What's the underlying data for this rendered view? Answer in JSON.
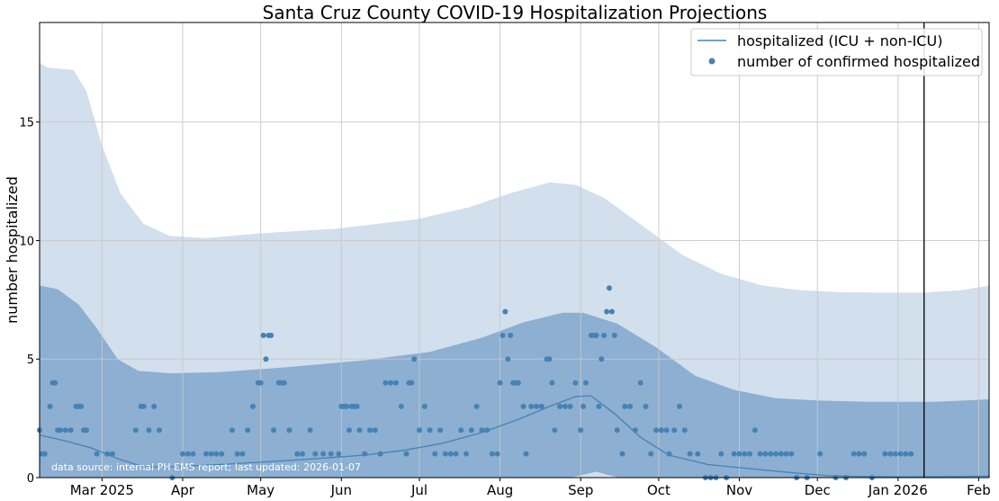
{
  "chart_data": {
    "type": "line",
    "title": "Santa Cruz County COVID-19 Hospitalization Projections",
    "ylabel": "number hospitalized",
    "xlabel": "",
    "x_start": "2025-02-05",
    "x_end": "2026-02-05",
    "ylim": [
      0,
      19.2
    ],
    "yticks": [
      0,
      5,
      10,
      15
    ],
    "xticks": [
      {
        "date": "2025-03-01",
        "label": "Mar 2025"
      },
      {
        "date": "2025-04-01",
        "label": "Apr"
      },
      {
        "date": "2025-05-01",
        "label": "May"
      },
      {
        "date": "2025-06-01",
        "label": "Jun"
      },
      {
        "date": "2025-07-01",
        "label": "Jul"
      },
      {
        "date": "2025-08-01",
        "label": "Aug"
      },
      {
        "date": "2025-09-01",
        "label": "Sep"
      },
      {
        "date": "2025-10-01",
        "label": "Oct"
      },
      {
        "date": "2025-11-01",
        "label": "Nov"
      },
      {
        "date": "2025-12-01",
        "label": "Dec"
      },
      {
        "date": "2026-01-01",
        "label": "Jan 2026"
      },
      {
        "date": "2026-02-01",
        "label": "Feb"
      }
    ],
    "grid": true,
    "legend_position": "top-right",
    "legend": [
      {
        "label": "hospitalized (ICU + non-ICU)",
        "kind": "line"
      },
      {
        "label": "number of confirmed hospitalized",
        "kind": "marker"
      }
    ],
    "vline_date": "2026-01-11",
    "source_note": "data source: internal PH EMS report; last updated: 2026-01-07",
    "colors": {
      "line": "#4682b4",
      "points": "#4682b4",
      "outer_band": "#d2dfec",
      "inner_band": "#8cafd2",
      "grid": "#c8c8c8",
      "vline": "#000000"
    },
    "series": [
      {
        "name": "hospitalized (ICU + non-ICU)",
        "points": [
          [
            "2025-02-05",
            1.8
          ],
          [
            "2025-02-15",
            1.55
          ],
          [
            "2025-02-25",
            1.25
          ],
          [
            "2025-03-07",
            0.8
          ],
          [
            "2025-03-17",
            0.45
          ],
          [
            "2025-03-27",
            0.45
          ],
          [
            "2025-04-15",
            0.55
          ],
          [
            "2025-05-01",
            0.65
          ],
          [
            "2025-05-20",
            0.78
          ],
          [
            "2025-06-10",
            0.95
          ],
          [
            "2025-06-25",
            1.15
          ],
          [
            "2025-07-10",
            1.45
          ],
          [
            "2025-07-25",
            1.9
          ],
          [
            "2025-08-08",
            2.45
          ],
          [
            "2025-08-20",
            3.0
          ],
          [
            "2025-08-30",
            3.42
          ],
          [
            "2025-09-05",
            3.45
          ],
          [
            "2025-09-14",
            2.7
          ],
          [
            "2025-09-24",
            1.7
          ],
          [
            "2025-10-05",
            0.95
          ],
          [
            "2025-10-20",
            0.55
          ],
          [
            "2025-11-05",
            0.38
          ],
          [
            "2025-11-20",
            0.22
          ],
          [
            "2025-12-05",
            0.08
          ],
          [
            "2025-12-20",
            0.04
          ],
          [
            "2026-01-05",
            0.03
          ],
          [
            "2026-01-20",
            0.04
          ],
          [
            "2026-02-05",
            0.06
          ]
        ]
      },
      {
        "name": "upper bound (outer)",
        "points": [
          [
            "2025-02-05",
            17.5
          ],
          [
            "2025-02-08",
            17.3
          ],
          [
            "2025-02-18",
            17.2
          ],
          [
            "2025-02-23",
            16.3
          ],
          [
            "2025-03-01",
            14.0
          ],
          [
            "2025-03-08",
            12.0
          ],
          [
            "2025-03-17",
            10.7
          ],
          [
            "2025-03-27",
            10.2
          ],
          [
            "2025-04-10",
            10.1
          ],
          [
            "2025-04-30",
            10.3
          ],
          [
            "2025-05-30",
            10.5
          ],
          [
            "2025-06-30",
            10.9
          ],
          [
            "2025-07-20",
            11.4
          ],
          [
            "2025-08-05",
            12.0
          ],
          [
            "2025-08-20",
            12.45
          ],
          [
            "2025-08-30",
            12.35
          ],
          [
            "2025-09-10",
            11.8
          ],
          [
            "2025-09-25",
            10.6
          ],
          [
            "2025-10-10",
            9.4
          ],
          [
            "2025-10-25",
            8.6
          ],
          [
            "2025-11-10",
            8.1
          ],
          [
            "2025-11-25",
            7.9
          ],
          [
            "2025-12-10",
            7.82
          ],
          [
            "2025-12-25",
            7.8
          ],
          [
            "2026-01-10",
            7.8
          ],
          [
            "2026-01-25",
            7.9
          ],
          [
            "2026-02-05",
            8.1
          ]
        ]
      },
      {
        "name": "upper bound (inner)",
        "points": [
          [
            "2025-02-05",
            8.1
          ],
          [
            "2025-02-12",
            7.95
          ],
          [
            "2025-02-20",
            7.3
          ],
          [
            "2025-02-27",
            6.3
          ],
          [
            "2025-03-07",
            5.0
          ],
          [
            "2025-03-15",
            4.5
          ],
          [
            "2025-03-27",
            4.4
          ],
          [
            "2025-04-15",
            4.45
          ],
          [
            "2025-05-10",
            4.65
          ],
          [
            "2025-06-10",
            4.95
          ],
          [
            "2025-07-05",
            5.3
          ],
          [
            "2025-07-25",
            5.9
          ],
          [
            "2025-08-10",
            6.55
          ],
          [
            "2025-08-25",
            6.95
          ],
          [
            "2025-09-02",
            6.95
          ],
          [
            "2025-09-15",
            6.5
          ],
          [
            "2025-09-30",
            5.5
          ],
          [
            "2025-10-15",
            4.3
          ],
          [
            "2025-10-30",
            3.7
          ],
          [
            "2025-11-15",
            3.35
          ],
          [
            "2025-12-01",
            3.25
          ],
          [
            "2025-12-20",
            3.2
          ],
          [
            "2026-01-15",
            3.2
          ],
          [
            "2026-02-05",
            3.3
          ]
        ]
      },
      {
        "name": "lower bound (inner)",
        "points": [
          [
            "2025-02-05",
            0
          ],
          [
            "2025-08-28",
            0
          ],
          [
            "2025-09-01",
            0.1
          ],
          [
            "2025-09-07",
            0.25
          ],
          [
            "2025-09-12",
            0.1
          ],
          [
            "2025-09-16",
            0
          ],
          [
            "2026-02-05",
            0
          ]
        ]
      },
      {
        "name": "number of confirmed hospitalized",
        "kind": "scatter",
        "points": [
          [
            "2025-02-05",
            2
          ],
          [
            "2025-02-06",
            1
          ],
          [
            "2025-02-07",
            1
          ],
          [
            "2025-02-09",
            3
          ],
          [
            "2025-02-10",
            4
          ],
          [
            "2025-02-11",
            4
          ],
          [
            "2025-02-12",
            2
          ],
          [
            "2025-02-13",
            2
          ],
          [
            "2025-02-15",
            2
          ],
          [
            "2025-02-17",
            2
          ],
          [
            "2025-02-19",
            3
          ],
          [
            "2025-02-20",
            3
          ],
          [
            "2025-02-21",
            3
          ],
          [
            "2025-02-22",
            2
          ],
          [
            "2025-02-23",
            2
          ],
          [
            "2025-02-27",
            1
          ],
          [
            "2025-03-03",
            1
          ],
          [
            "2025-03-05",
            1
          ],
          [
            "2025-03-14",
            2
          ],
          [
            "2025-03-16",
            3
          ],
          [
            "2025-03-17",
            3
          ],
          [
            "2025-03-19",
            2
          ],
          [
            "2025-03-21",
            3
          ],
          [
            "2025-03-23",
            2
          ],
          [
            "2025-03-28",
            0
          ],
          [
            "2025-04-01",
            1
          ],
          [
            "2025-04-03",
            1
          ],
          [
            "2025-04-05",
            1
          ],
          [
            "2025-04-10",
            1
          ],
          [
            "2025-04-12",
            1
          ],
          [
            "2025-04-14",
            1
          ],
          [
            "2025-04-16",
            1
          ],
          [
            "2025-04-20",
            2
          ],
          [
            "2025-04-22",
            1
          ],
          [
            "2025-04-24",
            1
          ],
          [
            "2025-04-26",
            2
          ],
          [
            "2025-04-28",
            3
          ],
          [
            "2025-04-30",
            4
          ],
          [
            "2025-05-01",
            4
          ],
          [
            "2025-05-02",
            6
          ],
          [
            "2025-05-03",
            5
          ],
          [
            "2025-05-04",
            6
          ],
          [
            "2025-05-05",
            6
          ],
          [
            "2025-05-06",
            2
          ],
          [
            "2025-05-08",
            4
          ],
          [
            "2025-05-09",
            4
          ],
          [
            "2025-05-10",
            4
          ],
          [
            "2025-05-12",
            2
          ],
          [
            "2025-05-15",
            1
          ],
          [
            "2025-05-17",
            1
          ],
          [
            "2025-05-20",
            2
          ],
          [
            "2025-05-22",
            1
          ],
          [
            "2025-05-25",
            1
          ],
          [
            "2025-05-28",
            1
          ],
          [
            "2025-05-31",
            1
          ],
          [
            "2025-06-01",
            3
          ],
          [
            "2025-06-02",
            3
          ],
          [
            "2025-06-03",
            3
          ],
          [
            "2025-06-04",
            2
          ],
          [
            "2025-06-05",
            3
          ],
          [
            "2025-06-06",
            3
          ],
          [
            "2025-06-07",
            3
          ],
          [
            "2025-06-08",
            2
          ],
          [
            "2025-06-10",
            1
          ],
          [
            "2025-06-12",
            2
          ],
          [
            "2025-06-14",
            2
          ],
          [
            "2025-06-16",
            1
          ],
          [
            "2025-06-18",
            4
          ],
          [
            "2025-06-20",
            4
          ],
          [
            "2025-06-22",
            4
          ],
          [
            "2025-06-24",
            3
          ],
          [
            "2025-06-26",
            1
          ],
          [
            "2025-06-27",
            4
          ],
          [
            "2025-06-28",
            4
          ],
          [
            "2025-06-29",
            5
          ],
          [
            "2025-07-01",
            2
          ],
          [
            "2025-07-03",
            3
          ],
          [
            "2025-07-05",
            2
          ],
          [
            "2025-07-07",
            1
          ],
          [
            "2025-07-09",
            2
          ],
          [
            "2025-07-11",
            1
          ],
          [
            "2025-07-13",
            1
          ],
          [
            "2025-07-15",
            1
          ],
          [
            "2025-07-17",
            2
          ],
          [
            "2025-07-19",
            1
          ],
          [
            "2025-07-21",
            2
          ],
          [
            "2025-07-23",
            3
          ],
          [
            "2025-07-25",
            2
          ],
          [
            "2025-07-27",
            2
          ],
          [
            "2025-07-29",
            1
          ],
          [
            "2025-07-31",
            1
          ],
          [
            "2025-08-01",
            4
          ],
          [
            "2025-08-02",
            6
          ],
          [
            "2025-08-03",
            7
          ],
          [
            "2025-08-04",
            5
          ],
          [
            "2025-08-05",
            6
          ],
          [
            "2025-08-06",
            4
          ],
          [
            "2025-08-07",
            4
          ],
          [
            "2025-08-08",
            4
          ],
          [
            "2025-08-10",
            3
          ],
          [
            "2025-08-11",
            1
          ],
          [
            "2025-08-13",
            3
          ],
          [
            "2025-08-15",
            3
          ],
          [
            "2025-08-17",
            3
          ],
          [
            "2025-08-19",
            5
          ],
          [
            "2025-08-20",
            5
          ],
          [
            "2025-08-21",
            4
          ],
          [
            "2025-08-22",
            2
          ],
          [
            "2025-08-24",
            3
          ],
          [
            "2025-08-26",
            3
          ],
          [
            "2025-08-28",
            3
          ],
          [
            "2025-08-30",
            4
          ],
          [
            "2025-09-01",
            2
          ],
          [
            "2025-09-02",
            3
          ],
          [
            "2025-09-03",
            4
          ],
          [
            "2025-09-05",
            6
          ],
          [
            "2025-09-06",
            6
          ],
          [
            "2025-09-07",
            6
          ],
          [
            "2025-09-08",
            3
          ],
          [
            "2025-09-09",
            5
          ],
          [
            "2025-09-10",
            6
          ],
          [
            "2025-09-11",
            7
          ],
          [
            "2025-09-12",
            8
          ],
          [
            "2025-09-13",
            7
          ],
          [
            "2025-09-14",
            6
          ],
          [
            "2025-09-15",
            2
          ],
          [
            "2025-09-17",
            1
          ],
          [
            "2025-09-18",
            3
          ],
          [
            "2025-09-20",
            3
          ],
          [
            "2025-09-22",
            2
          ],
          [
            "2025-09-24",
            4
          ],
          [
            "2025-09-26",
            3
          ],
          [
            "2025-09-28",
            1
          ],
          [
            "2025-09-30",
            2
          ],
          [
            "2025-10-02",
            2
          ],
          [
            "2025-10-04",
            2
          ],
          [
            "2025-10-05",
            1
          ],
          [
            "2025-10-07",
            2
          ],
          [
            "2025-10-09",
            3
          ],
          [
            "2025-10-11",
            2
          ],
          [
            "2025-10-13",
            1
          ],
          [
            "2025-10-16",
            1
          ],
          [
            "2025-10-19",
            0
          ],
          [
            "2025-10-21",
            0
          ],
          [
            "2025-10-23",
            0
          ],
          [
            "2025-10-25",
            1
          ],
          [
            "2025-10-27",
            0
          ],
          [
            "2025-10-30",
            1
          ],
          [
            "2025-11-01",
            1
          ],
          [
            "2025-11-03",
            1
          ],
          [
            "2025-11-05",
            1
          ],
          [
            "2025-11-07",
            2
          ],
          [
            "2025-11-09",
            1
          ],
          [
            "2025-11-11",
            1
          ],
          [
            "2025-11-13",
            1
          ],
          [
            "2025-11-15",
            1
          ],
          [
            "2025-11-17",
            1
          ],
          [
            "2025-11-19",
            1
          ],
          [
            "2025-11-21",
            1
          ],
          [
            "2025-11-23",
            0
          ],
          [
            "2025-11-27",
            0
          ],
          [
            "2025-12-02",
            1
          ],
          [
            "2025-12-08",
            0
          ],
          [
            "2025-12-12",
            0
          ],
          [
            "2025-12-15",
            1
          ],
          [
            "2025-12-17",
            1
          ],
          [
            "2025-12-19",
            1
          ],
          [
            "2025-12-22",
            0
          ],
          [
            "2025-12-27",
            1
          ],
          [
            "2025-12-29",
            1
          ],
          [
            "2025-12-31",
            1
          ],
          [
            "2026-01-02",
            1
          ],
          [
            "2026-01-04",
            1
          ],
          [
            "2026-01-06",
            1
          ]
        ]
      }
    ]
  }
}
